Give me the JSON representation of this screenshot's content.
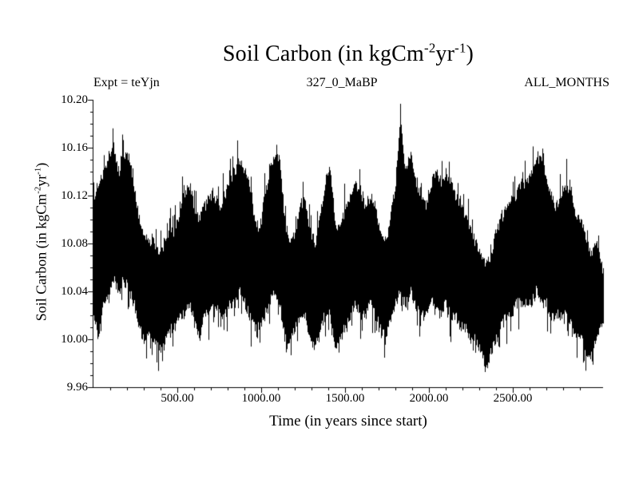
{
  "chart_data": {
    "type": "line",
    "title": "Soil Carbon (in kgCm-2yr-1)",
    "title_parts": {
      "a": "Soil Carbon (in kgCm",
      "sup1": "-2",
      "b": "yr",
      "sup2": "-1",
      "c": ")"
    },
    "header": {
      "left": "Expt = teYjn",
      "center": "327_0_MaBP",
      "right": "ALL_MONTHS"
    },
    "xlabel": "Time (in years since start)",
    "ylabel_parts": {
      "a": "Soil Carbon (in kgCm",
      "sup1": "-2",
      "b": "yr",
      "sup2": "-1",
      "c": ")"
    },
    "xlim": [
      0,
      3040
    ],
    "ylim": [
      9.96,
      10.2
    ],
    "grid": false,
    "legend": "none",
    "line_color": "#000000",
    "xticks": [
      {
        "value": 500,
        "label": "500.00"
      },
      {
        "value": 1000,
        "label": "1000.00"
      },
      {
        "value": 1500,
        "label": "1500.00"
      },
      {
        "value": 2000,
        "label": "2000.00"
      },
      {
        "value": 2500,
        "label": "2500.00"
      }
    ],
    "yticks": [
      {
        "value": 10.2,
        "label": "10.20"
      },
      {
        "value": 10.16,
        "label": "10.16"
      },
      {
        "value": 10.12,
        "label": "10.12"
      },
      {
        "value": 10.08,
        "label": "10.08"
      },
      {
        "value": 10.04,
        "label": "10.04"
      },
      {
        "value": 10.0,
        "label": "10.00"
      },
      {
        "value": 9.96,
        "label": "9.96"
      }
    ],
    "series": {
      "name": "Soil Carbon",
      "sampling": "min-max envelope per 30-year bin of a dense noisy monthly series",
      "x_start": 0,
      "x_step": 30,
      "ymax": [
        10.12,
        10.13,
        10.14,
        10.15,
        10.16,
        10.14,
        10.155,
        10.15,
        10.13,
        10.1,
        10.09,
        10.08,
        10.08,
        10.07,
        10.08,
        10.09,
        10.09,
        10.1,
        10.12,
        10.13,
        10.11,
        10.1,
        10.11,
        10.12,
        10.12,
        10.11,
        10.12,
        10.13,
        10.14,
        10.15,
        10.14,
        10.13,
        10.1,
        10.09,
        10.12,
        10.14,
        10.155,
        10.15,
        10.1,
        10.08,
        10.09,
        10.11,
        10.12,
        10.09,
        10.08,
        10.1,
        10.13,
        10.145,
        10.1,
        10.09,
        10.11,
        10.12,
        10.13,
        10.12,
        10.11,
        10.12,
        10.11,
        10.09,
        10.08,
        10.1,
        10.13,
        10.19,
        10.14,
        10.155,
        10.13,
        10.12,
        10.11,
        10.13,
        10.14,
        10.13,
        10.14,
        10.13,
        10.12,
        10.11,
        10.1,
        10.09,
        10.08,
        10.07,
        10.06,
        10.07,
        10.09,
        10.1,
        10.11,
        10.12,
        10.12,
        10.13,
        10.13,
        10.14,
        10.15,
        10.15,
        10.13,
        10.12,
        10.11,
        10.12,
        10.13,
        10.12,
        10.1,
        10.1,
        10.08,
        10.07,
        10.08,
        10.06
      ],
      "ymin": [
        10.02,
        10.0,
        10.03,
        10.04,
        10.05,
        10.04,
        10.05,
        10.04,
        10.03,
        10.01,
        10.0,
        10.01,
        10.0,
        9.99,
        9.995,
        10.01,
        10.01,
        10.02,
        10.02,
        10.03,
        10.02,
        10.0,
        10.02,
        10.02,
        10.03,
        10.02,
        10.02,
        10.03,
        10.03,
        10.04,
        10.03,
        10.02,
        10.01,
        10.01,
        10.02,
        10.03,
        10.04,
        10.03,
        10.0,
        10.0,
        10.01,
        10.02,
        10.02,
        10.0,
        9.995,
        10.01,
        10.02,
        10.02,
        9.99,
        10.0,
        10.01,
        10.02,
        10.03,
        10.02,
        10.02,
        10.03,
        10.02,
        10.01,
        10.0,
        10.02,
        10.03,
        10.04,
        10.03,
        10.04,
        10.03,
        10.02,
        10.02,
        10.03,
        10.03,
        10.02,
        10.03,
        10.02,
        10.02,
        10.01,
        10.01,
        10.0,
        10.0,
        9.99,
        9.975,
        9.99,
        10.0,
        10.01,
        10.02,
        10.02,
        10.03,
        10.03,
        10.03,
        10.03,
        10.04,
        10.03,
        10.03,
        10.02,
        10.02,
        10.02,
        10.02,
        10.01,
        10.0,
        10.0,
        9.99,
        9.985,
        10.0,
        10.01
      ]
    }
  }
}
